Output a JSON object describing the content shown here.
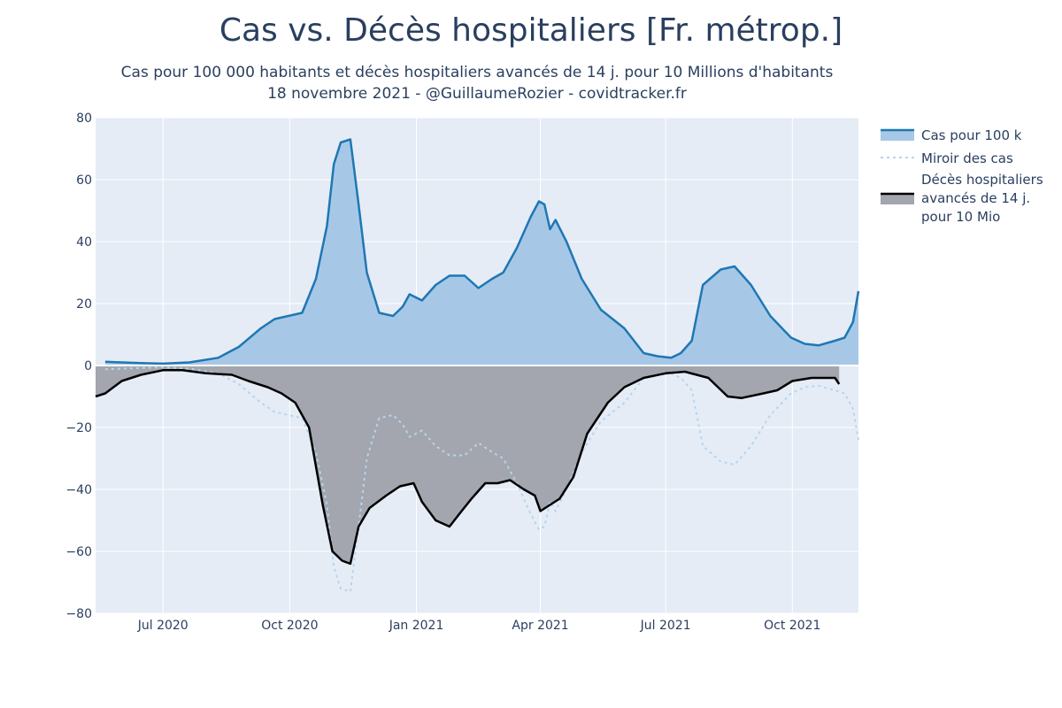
{
  "header": {
    "title": "Cas vs. Décès hospitaliers [Fr. métrop.]",
    "subtitle_line1": "Cas pour 100 000 habitants et décès hospitaliers avancés de 14 j. pour 10 Millions d'habitants",
    "subtitle_line2": "18 novembre 2021 - @GuillaumeRozier - covidtracker.fr"
  },
  "chart_data": {
    "type": "area",
    "title": "Cas vs. Décès hospitaliers [Fr. métrop.]",
    "x_range": [
      "2020-05-13",
      "2021-11-18"
    ],
    "ylim": [
      -80,
      80
    ],
    "y_ticks": [
      80,
      60,
      40,
      20,
      0,
      -20,
      -40,
      -60,
      -80
    ],
    "y_tick_labels": [
      "80",
      "60",
      "40",
      "20",
      "0",
      "−20",
      "−40",
      "−60",
      "−80"
    ],
    "x_ticks": [
      {
        "date": "2020-07-01",
        "label": "Jul 2020"
      },
      {
        "date": "2020-10-01",
        "label": "Oct 2020"
      },
      {
        "date": "2021-01-01",
        "label": "Jan 2021"
      },
      {
        "date": "2021-04-01",
        "label": "Apr 2021"
      },
      {
        "date": "2021-07-01",
        "label": "Jul 2021"
      },
      {
        "date": "2021-10-01",
        "label": "Oct 2021"
      }
    ],
    "grid": true,
    "legend_position": "right",
    "colors": {
      "plot_bg": "#e5ecf6",
      "cases_line": "#1f77b4",
      "cases_fill": "#a6c8e6",
      "mirror_line": "#b7d4ee",
      "deaths_line": "#000000",
      "deaths_fill": "#a3a6ae"
    },
    "series": [
      {
        "name": "Cas pour 100 k",
        "x": [
          "2020-05-20",
          "2020-06-15",
          "2020-07-01",
          "2020-07-20",
          "2020-08-10",
          "2020-08-25",
          "2020-09-10",
          "2020-09-20",
          "2020-09-30",
          "2020-10-10",
          "2020-10-20",
          "2020-10-28",
          "2020-11-02",
          "2020-11-07",
          "2020-11-14",
          "2020-11-20",
          "2020-11-26",
          "2020-12-05",
          "2020-12-15",
          "2020-12-22",
          "2020-12-27",
          "2021-01-05",
          "2021-01-15",
          "2021-01-25",
          "2021-02-05",
          "2021-02-15",
          "2021-02-25",
          "2021-03-05",
          "2021-03-15",
          "2021-03-25",
          "2021-03-31",
          "2021-04-04",
          "2021-04-08",
          "2021-04-12",
          "2021-04-20",
          "2021-05-01",
          "2021-05-15",
          "2021-06-01",
          "2021-06-15",
          "2021-06-25",
          "2021-07-05",
          "2021-07-12",
          "2021-07-20",
          "2021-07-28",
          "2021-08-10",
          "2021-08-20",
          "2021-09-01",
          "2021-09-15",
          "2021-09-30",
          "2021-10-10",
          "2021-10-20",
          "2021-11-01",
          "2021-11-08",
          "2021-11-14",
          "2021-11-18"
        ],
        "values": [
          1.2,
          0.8,
          0.6,
          1.0,
          2.5,
          6,
          12,
          15,
          16,
          17,
          28,
          45,
          65,
          72,
          73,
          52,
          30,
          17,
          16,
          19,
          23,
          21,
          26,
          29,
          29,
          25,
          28,
          30,
          38,
          48,
          53,
          52,
          44,
          47,
          40,
          28,
          18,
          12,
          4,
          3,
          2.5,
          4,
          8,
          26,
          31,
          32,
          26,
          16,
          9,
          7,
          6.5,
          8,
          9,
          14,
          24
        ]
      },
      {
        "name": "Miroir des cas",
        "x": [
          "2020-05-20",
          "2020-06-15",
          "2020-07-01",
          "2020-07-20",
          "2020-08-10",
          "2020-08-25",
          "2020-09-10",
          "2020-09-20",
          "2020-09-30",
          "2020-10-10",
          "2020-10-20",
          "2020-10-28",
          "2020-11-02",
          "2020-11-07",
          "2020-11-14",
          "2020-11-20",
          "2020-11-26",
          "2020-12-05",
          "2020-12-15",
          "2020-12-22",
          "2020-12-27",
          "2021-01-05",
          "2021-01-15",
          "2021-01-25",
          "2021-02-05",
          "2021-02-15",
          "2021-02-25",
          "2021-03-05",
          "2021-03-15",
          "2021-03-25",
          "2021-03-31",
          "2021-04-04",
          "2021-04-08",
          "2021-04-12",
          "2021-04-20",
          "2021-05-01",
          "2021-05-15",
          "2021-06-01",
          "2021-06-15",
          "2021-06-25",
          "2021-07-05",
          "2021-07-12",
          "2021-07-20",
          "2021-07-28",
          "2021-08-10",
          "2021-08-20",
          "2021-09-01",
          "2021-09-15",
          "2021-09-30",
          "2021-10-10",
          "2021-10-20",
          "2021-11-01",
          "2021-11-08",
          "2021-11-14",
          "2021-11-18"
        ],
        "values": [
          -1.2,
          -0.8,
          -0.6,
          -1.0,
          -2.5,
          -6,
          -12,
          -15,
          -16,
          -17,
          -28,
          -45,
          -65,
          -72,
          -73,
          -52,
          -30,
          -17,
          -16,
          -19,
          -23,
          -21,
          -26,
          -29,
          -29,
          -25,
          -28,
          -30,
          -38,
          -48,
          -53,
          -52,
          -44,
          -47,
          -40,
          -28,
          -18,
          -12,
          -4,
          -3,
          -2.5,
          -4,
          -8,
          -26,
          -31,
          -32,
          -26,
          -16,
          -9,
          -7,
          -6.5,
          -8,
          -9,
          -14,
          -24
        ]
      },
      {
        "name": "Décès hospitaliers avancés de 14 j. pour 10 Mio",
        "x": [
          "2020-05-13",
          "2020-05-20",
          "2020-06-01",
          "2020-06-15",
          "2020-07-01",
          "2020-07-15",
          "2020-08-01",
          "2020-08-20",
          "2020-09-01",
          "2020-09-15",
          "2020-09-25",
          "2020-10-05",
          "2020-10-15",
          "2020-10-25",
          "2020-11-01",
          "2020-11-08",
          "2020-11-14",
          "2020-11-20",
          "2020-11-28",
          "2020-12-10",
          "2020-12-20",
          "2020-12-30",
          "2021-01-05",
          "2021-01-15",
          "2021-01-25",
          "2021-02-01",
          "2021-02-10",
          "2021-02-20",
          "2021-03-01",
          "2021-03-10",
          "2021-03-20",
          "2021-03-28",
          "2021-04-01",
          "2021-04-08",
          "2021-04-15",
          "2021-04-25",
          "2021-05-05",
          "2021-05-20",
          "2021-06-01",
          "2021-06-15",
          "2021-07-01",
          "2021-07-15",
          "2021-08-01",
          "2021-08-15",
          "2021-08-25",
          "2021-09-10",
          "2021-09-20",
          "2021-10-01",
          "2021-10-15",
          "2021-10-25",
          "2021-11-01",
          "2021-11-04"
        ],
        "values": [
          -10,
          -9,
          -5,
          -3,
          -1.5,
          -1.5,
          -2.5,
          -3,
          -5,
          -7,
          -9,
          -12,
          -20,
          -45,
          -60,
          -63,
          -64,
          -52,
          -46,
          -42,
          -39,
          -38,
          -44,
          -50,
          -52,
          -48,
          -43,
          -38,
          -38,
          -37,
          -40,
          -42,
          -47,
          -45,
          -43,
          -36,
          -22,
          -12,
          -7,
          -4,
          -2.5,
          -2,
          -4,
          -10,
          -10.5,
          -9,
          -8,
          -5,
          -4,
          -4,
          -4,
          -6
        ]
      }
    ]
  },
  "legend": {
    "items": [
      {
        "label_lines": [
          "Cas pour 100 k"
        ]
      },
      {
        "label_lines": [
          "Miroir des cas"
        ]
      },
      {
        "label_lines": [
          "Décès hospitaliers",
          "avancés de 14 j.",
          "pour 10 Mio"
        ]
      }
    ]
  }
}
